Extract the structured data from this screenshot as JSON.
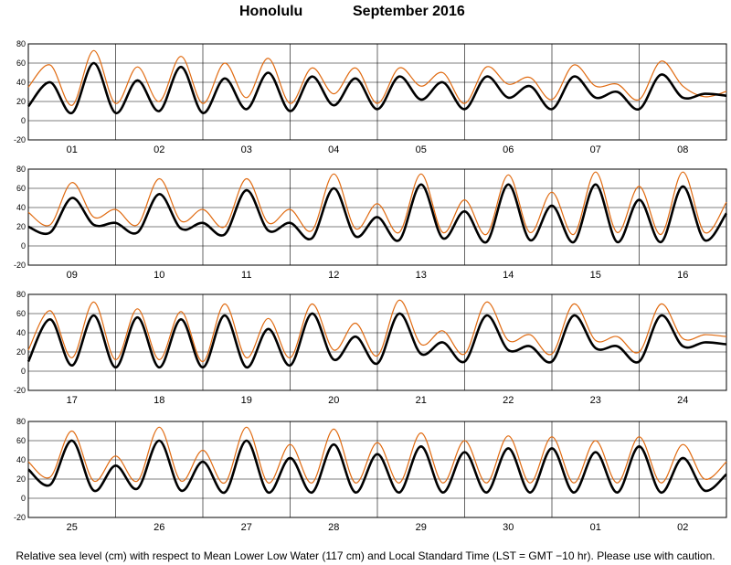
{
  "title": {
    "station": "Honolulu",
    "month": "September  2016"
  },
  "footnote": "Relative sea level (cm) with respect to Mean Lower Low Water (117 cm) and Local Standard Time (LST = GMT −10 hr). Please use with caution.",
  "colors": {
    "observed": "#000000",
    "predicted": "#e06a10",
    "grid": "#000000"
  },
  "chart_data": [
    {
      "type": "line",
      "ylim": [
        -20,
        80
      ],
      "yticks": [
        -20,
        0,
        20,
        40,
        60,
        80
      ],
      "x_day_labels": [
        "01",
        "02",
        "03",
        "04",
        "05",
        "06",
        "07",
        "08"
      ],
      "series": [
        {
          "color": "#000000",
          "points": [
            [
              0,
              15
            ],
            [
              0.25,
              40
            ],
            [
              0.5,
              8
            ],
            [
              0.75,
              60
            ],
            [
              1,
              8
            ],
            [
              1.25,
              42
            ],
            [
              1.5,
              10
            ],
            [
              1.75,
              56
            ],
            [
              2,
              8
            ],
            [
              2.25,
              44
            ],
            [
              2.5,
              12
            ],
            [
              2.75,
              50
            ],
            [
              3,
              10
            ],
            [
              3.25,
              46
            ],
            [
              3.5,
              16
            ],
            [
              3.75,
              44
            ],
            [
              4,
              12
            ],
            [
              4.25,
              46
            ],
            [
              4.5,
              22
            ],
            [
              4.75,
              40
            ],
            [
              5,
              12
            ],
            [
              5.25,
              46
            ],
            [
              5.5,
              24
            ],
            [
              5.75,
              36
            ],
            [
              6,
              12
            ],
            [
              6.25,
              46
            ],
            [
              6.5,
              24
            ],
            [
              6.75,
              30
            ],
            [
              7,
              12
            ],
            [
              7.25,
              48
            ],
            [
              7.5,
              24
            ],
            [
              7.75,
              28
            ]
          ]
        },
        {
          "color": "#e06a10",
          "points": [
            [
              0,
              35
            ],
            [
              0.25,
              58
            ],
            [
              0.5,
              16
            ],
            [
              0.75,
              73
            ],
            [
              1,
              18
            ],
            [
              1.25,
              56
            ],
            [
              1.5,
              20
            ],
            [
              1.75,
              67
            ],
            [
              2,
              18
            ],
            [
              2.25,
              60
            ],
            [
              2.5,
              24
            ],
            [
              2.75,
              65
            ],
            [
              3,
              18
            ],
            [
              3.25,
              55
            ],
            [
              3.5,
              28
            ],
            [
              3.75,
              55
            ],
            [
              4,
              18
            ],
            [
              4.25,
              55
            ],
            [
              4.5,
              36
            ],
            [
              4.75,
              50
            ],
            [
              5,
              18
            ],
            [
              5.25,
              56
            ],
            [
              5.5,
              38
            ],
            [
              5.75,
              45
            ],
            [
              6,
              22
            ],
            [
              6.25,
              58
            ],
            [
              6.5,
              36
            ],
            [
              6.75,
              38
            ],
            [
              7,
              22
            ],
            [
              7.25,
              62
            ],
            [
              7.5,
              36
            ],
            [
              7.75,
              25
            ]
          ]
        }
      ]
    },
    {
      "type": "line",
      "ylim": [
        -20,
        80
      ],
      "yticks": [
        -20,
        0,
        20,
        40,
        60,
        80
      ],
      "x_day_labels": [
        "09",
        "10",
        "11",
        "12",
        "13",
        "14",
        "15",
        "16"
      ],
      "series": [
        {
          "color": "#000000",
          "points": [
            [
              0,
              20
            ],
            [
              0.25,
              14
            ],
            [
              0.5,
              50
            ],
            [
              0.75,
              22
            ],
            [
              1,
              24
            ],
            [
              1.25,
              14
            ],
            [
              1.5,
              54
            ],
            [
              1.75,
              18
            ],
            [
              2,
              24
            ],
            [
              2.25,
              12
            ],
            [
              2.5,
              58
            ],
            [
              2.75,
              16
            ],
            [
              3,
              24
            ],
            [
              3.25,
              8
            ],
            [
              3.5,
              60
            ],
            [
              3.75,
              10
            ],
            [
              4,
              30
            ],
            [
              4.25,
              6
            ],
            [
              4.5,
              64
            ],
            [
              4.75,
              8
            ],
            [
              5,
              36
            ],
            [
              5.25,
              4
            ],
            [
              5.5,
              64
            ],
            [
              5.75,
              6
            ],
            [
              6,
              42
            ],
            [
              6.25,
              4
            ],
            [
              6.5,
              64
            ],
            [
              6.75,
              4
            ],
            [
              7,
              48
            ],
            [
              7.25,
              4
            ],
            [
              7.5,
              62
            ],
            [
              7.75,
              6
            ]
          ]
        },
        {
          "color": "#e06a10",
          "points": [
            [
              0,
              35
            ],
            [
              0.25,
              22
            ],
            [
              0.5,
              66
            ],
            [
              0.75,
              30
            ],
            [
              1,
              38
            ],
            [
              1.25,
              22
            ],
            [
              1.5,
              70
            ],
            [
              1.75,
              26
            ],
            [
              2,
              38
            ],
            [
              2.25,
              20
            ],
            [
              2.5,
              70
            ],
            [
              2.75,
              24
            ],
            [
              3,
              38
            ],
            [
              3.25,
              16
            ],
            [
              3.5,
              75
            ],
            [
              3.75,
              18
            ],
            [
              4,
              44
            ],
            [
              4.25,
              14
            ],
            [
              4.5,
              75
            ],
            [
              4.75,
              14
            ],
            [
              5,
              48
            ],
            [
              5.25,
              12
            ],
            [
              5.5,
              74
            ],
            [
              5.75,
              14
            ],
            [
              6,
              56
            ],
            [
              6.25,
              12
            ],
            [
              6.5,
              77
            ],
            [
              6.75,
              14
            ],
            [
              7,
              62
            ],
            [
              7.25,
              12
            ],
            [
              7.5,
              77
            ],
            [
              7.75,
              14
            ]
          ]
        }
      ]
    },
    {
      "type": "line",
      "ylim": [
        -20,
        80
      ],
      "yticks": [
        -20,
        0,
        20,
        40,
        60,
        80
      ],
      "x_day_labels": [
        "17",
        "18",
        "19",
        "20",
        "21",
        "22",
        "23",
        "24"
      ],
      "series": [
        {
          "color": "#000000",
          "points": [
            [
              0,
              10
            ],
            [
              0.25,
              54
            ],
            [
              0.5,
              6
            ],
            [
              0.75,
              58
            ],
            [
              1,
              4
            ],
            [
              1.25,
              56
            ],
            [
              1.5,
              4
            ],
            [
              1.75,
              54
            ],
            [
              2,
              4
            ],
            [
              2.25,
              58
            ],
            [
              2.5,
              4
            ],
            [
              2.75,
              44
            ],
            [
              3,
              6
            ],
            [
              3.25,
              60
            ],
            [
              3.5,
              12
            ],
            [
              3.75,
              36
            ],
            [
              4,
              8
            ],
            [
              4.25,
              60
            ],
            [
              4.5,
              18
            ],
            [
              4.75,
              30
            ],
            [
              5,
              10
            ],
            [
              5.25,
              58
            ],
            [
              5.5,
              22
            ],
            [
              5.75,
              26
            ],
            [
              6,
              10
            ],
            [
              6.25,
              58
            ],
            [
              6.5,
              24
            ],
            [
              6.75,
              26
            ],
            [
              7,
              10
            ],
            [
              7.25,
              58
            ],
            [
              7.5,
              26
            ],
            [
              7.75,
              30
            ]
          ]
        },
        {
          "color": "#e06a10",
          "points": [
            [
              0,
              22
            ],
            [
              0.25,
              63
            ],
            [
              0.5,
              14
            ],
            [
              0.75,
              72
            ],
            [
              1,
              12
            ],
            [
              1.25,
              65
            ],
            [
              1.5,
              12
            ],
            [
              1.75,
              62
            ],
            [
              2,
              10
            ],
            [
              2.25,
              70
            ],
            [
              2.5,
              14
            ],
            [
              2.75,
              55
            ],
            [
              3,
              14
            ],
            [
              3.25,
              70
            ],
            [
              3.5,
              22
            ],
            [
              3.75,
              50
            ],
            [
              4,
              16
            ],
            [
              4.25,
              74
            ],
            [
              4.5,
              28
            ],
            [
              4.75,
              42
            ],
            [
              5,
              18
            ],
            [
              5.25,
              72
            ],
            [
              5.5,
              32
            ],
            [
              5.75,
              38
            ],
            [
              6,
              18
            ],
            [
              6.25,
              70
            ],
            [
              6.5,
              32
            ],
            [
              6.75,
              36
            ],
            [
              7,
              20
            ],
            [
              7.25,
              70
            ],
            [
              7.5,
              34
            ],
            [
              7.75,
              38
            ]
          ]
        }
      ]
    },
    {
      "type": "line",
      "ylim": [
        -20,
        80
      ],
      "yticks": [
        -20,
        0,
        20,
        40,
        60,
        80
      ],
      "x_day_labels": [
        "25",
        "26",
        "27",
        "28",
        "29",
        "30",
        "01",
        "02"
      ],
      "series": [
        {
          "color": "#000000",
          "points": [
            [
              0,
              30
            ],
            [
              0.25,
              14
            ],
            [
              0.5,
              60
            ],
            [
              0.75,
              8
            ],
            [
              1,
              34
            ],
            [
              1.25,
              10
            ],
            [
              1.5,
              60
            ],
            [
              1.75,
              8
            ],
            [
              2,
              38
            ],
            [
              2.25,
              6
            ],
            [
              2.5,
              60
            ],
            [
              2.75,
              6
            ],
            [
              3,
              42
            ],
            [
              3.25,
              6
            ],
            [
              3.5,
              56
            ],
            [
              3.75,
              6
            ],
            [
              4,
              46
            ],
            [
              4.25,
              6
            ],
            [
              4.5,
              54
            ],
            [
              4.75,
              6
            ],
            [
              5,
              48
            ],
            [
              5.25,
              6
            ],
            [
              5.5,
              52
            ],
            [
              5.75,
              6
            ],
            [
              6,
              52
            ],
            [
              6.25,
              6
            ],
            [
              6.5,
              48
            ],
            [
              6.75,
              6
            ],
            [
              7,
              54
            ],
            [
              7.25,
              6
            ],
            [
              7.5,
              42
            ],
            [
              7.75,
              8
            ]
          ]
        },
        {
          "color": "#e06a10",
          "points": [
            [
              0,
              38
            ],
            [
              0.25,
              22
            ],
            [
              0.5,
              70
            ],
            [
              0.75,
              18
            ],
            [
              1,
              44
            ],
            [
              1.25,
              18
            ],
            [
              1.5,
              74
            ],
            [
              1.75,
              18
            ],
            [
              2,
              50
            ],
            [
              2.25,
              16
            ],
            [
              2.5,
              74
            ],
            [
              2.75,
              16
            ],
            [
              3,
              56
            ],
            [
              3.25,
              16
            ],
            [
              3.5,
              72
            ],
            [
              3.75,
              16
            ],
            [
              4,
              58
            ],
            [
              4.25,
              16
            ],
            [
              4.5,
              68
            ],
            [
              4.75,
              16
            ],
            [
              5,
              60
            ],
            [
              5.25,
              16
            ],
            [
              5.5,
              65
            ],
            [
              5.75,
              16
            ],
            [
              6,
              64
            ],
            [
              6.25,
              16
            ],
            [
              6.5,
              60
            ],
            [
              6.75,
              16
            ],
            [
              7,
              64
            ],
            [
              7.25,
              16
            ],
            [
              7.5,
              56
            ],
            [
              7.75,
              20
            ]
          ]
        }
      ]
    }
  ]
}
